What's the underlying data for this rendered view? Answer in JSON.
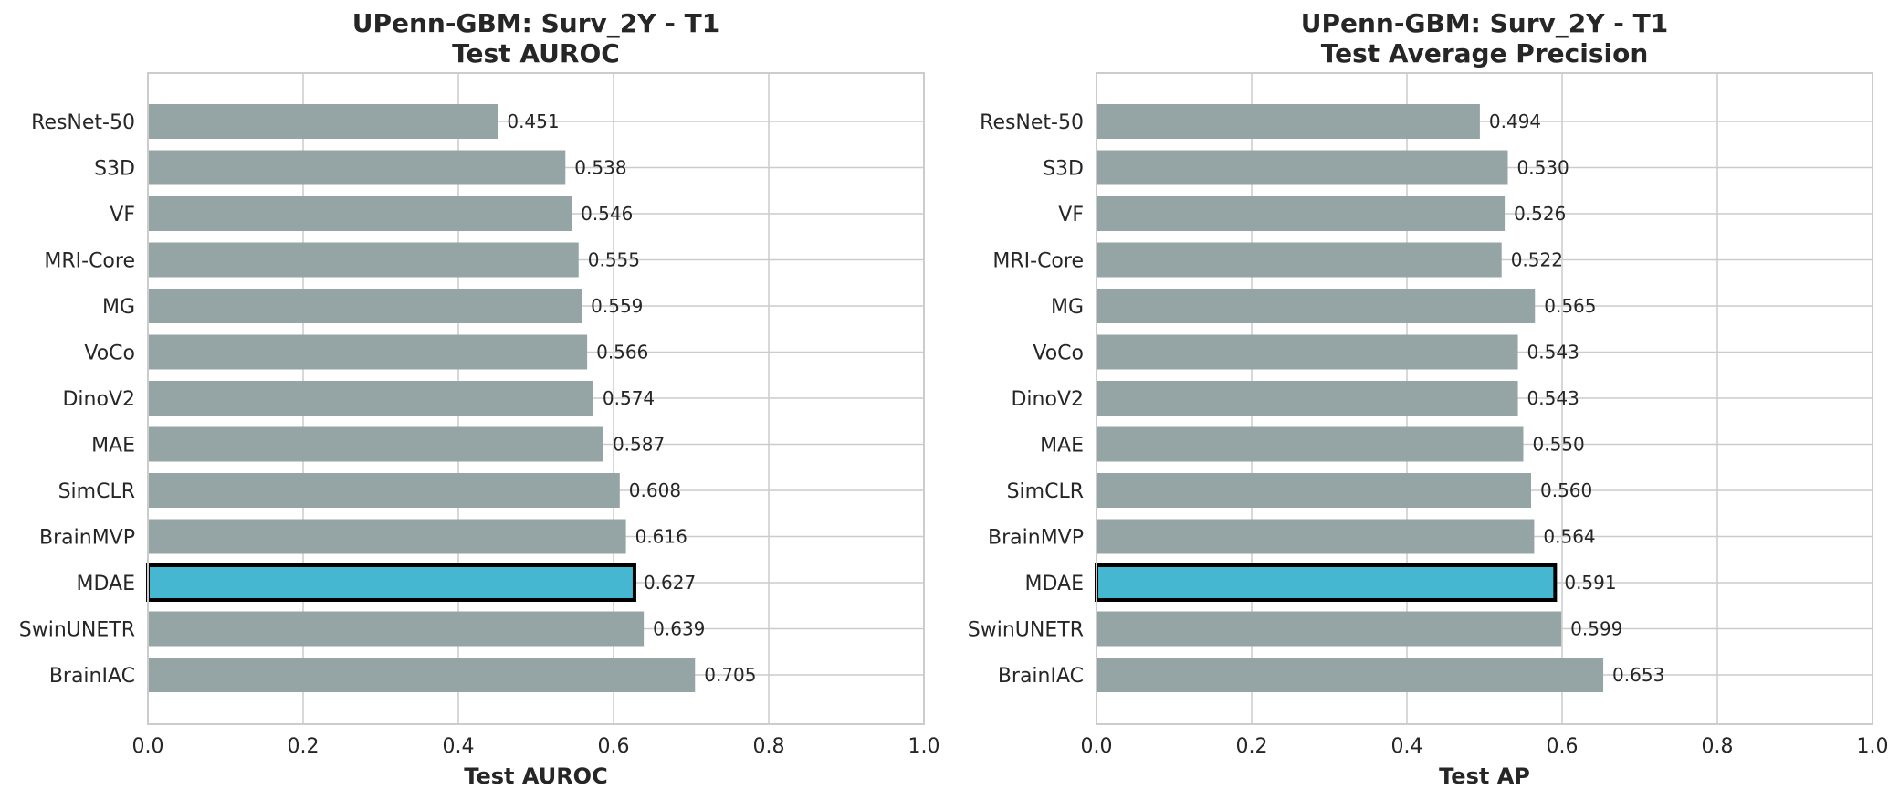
{
  "chart_data": [
    {
      "type": "bar",
      "orientation": "horizontal",
      "title": "UPenn-GBM: Surv_2Y - T1",
      "subtitle": "Test AUROC",
      "xlabel": "Test AUROC",
      "ylabel": "",
      "xlim": [
        0,
        1
      ],
      "xticks": [
        "0.0",
        "0.2",
        "0.4",
        "0.6",
        "0.8",
        "1.0"
      ],
      "grid": true,
      "categories": [
        "ResNet-50",
        "S3D",
        "VF",
        "MRI-Core",
        "MG",
        "VoCo",
        "DinoV2",
        "MAE",
        "SimCLR",
        "BrainMVP",
        "MDAE",
        "SwinUNETR",
        "BrainIAC"
      ],
      "values": [
        0.451,
        0.538,
        0.546,
        0.555,
        0.559,
        0.566,
        0.574,
        0.587,
        0.608,
        0.616,
        0.627,
        0.639,
        0.705
      ],
      "value_labels": [
        "0.451",
        "0.538",
        "0.546",
        "0.555",
        "0.559",
        "0.566",
        "0.574",
        "0.587",
        "0.608",
        "0.616",
        "0.627",
        "0.639",
        "0.705"
      ],
      "highlight": "MDAE",
      "colors": {
        "bar": "#95a5a6",
        "highlight": "#45b7d1",
        "highlight_edge": "#000000"
      }
    },
    {
      "type": "bar",
      "orientation": "horizontal",
      "title": "UPenn-GBM: Surv_2Y - T1",
      "subtitle": "Test Average Precision",
      "xlabel": "Test AP",
      "ylabel": "",
      "xlim": [
        0,
        1
      ],
      "xticks": [
        "0.0",
        "0.2",
        "0.4",
        "0.6",
        "0.8",
        "1.0"
      ],
      "grid": true,
      "categories": [
        "ResNet-50",
        "S3D",
        "VF",
        "MRI-Core",
        "MG",
        "VoCo",
        "DinoV2",
        "MAE",
        "SimCLR",
        "BrainMVP",
        "MDAE",
        "SwinUNETR",
        "BrainIAC"
      ],
      "values": [
        0.494,
        0.53,
        0.526,
        0.522,
        0.565,
        0.543,
        0.543,
        0.55,
        0.56,
        0.564,
        0.591,
        0.599,
        0.653
      ],
      "value_labels": [
        "0.494",
        "0.530",
        "0.526",
        "0.522",
        "0.565",
        "0.543",
        "0.543",
        "0.550",
        "0.560",
        "0.564",
        "0.591",
        "0.599",
        "0.653"
      ],
      "highlight": "MDAE",
      "colors": {
        "bar": "#95a5a6",
        "highlight": "#45b7d1",
        "highlight_edge": "#000000"
      }
    }
  ]
}
